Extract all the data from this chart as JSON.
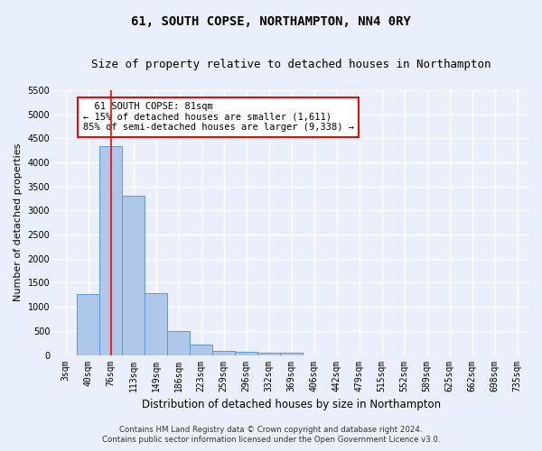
{
  "title": "61, SOUTH COPSE, NORTHAMPTON, NN4 0RY",
  "subtitle": "Size of property relative to detached houses in Northampton",
  "xlabel": "Distribution of detached houses by size in Northampton",
  "ylabel": "Number of detached properties",
  "footer_line1": "Contains HM Land Registry data © Crown copyright and database right 2024.",
  "footer_line2": "Contains public sector information licensed under the Open Government Licence v3.0.",
  "categories": [
    "3sqm",
    "40sqm",
    "76sqm",
    "113sqm",
    "149sqm",
    "186sqm",
    "223sqm",
    "259sqm",
    "296sqm",
    "332sqm",
    "369sqm",
    "406sqm",
    "442sqm",
    "479sqm",
    "515sqm",
    "552sqm",
    "589sqm",
    "625sqm",
    "662sqm",
    "698sqm",
    "735sqm"
  ],
  "values": [
    0,
    1270,
    4330,
    3300,
    1280,
    490,
    215,
    90,
    70,
    55,
    55,
    0,
    0,
    0,
    0,
    0,
    0,
    0,
    0,
    0,
    0
  ],
  "bar_color": "#aec6e8",
  "bar_edge_color": "#5b9bd5",
  "ylim": [
    0,
    5500
  ],
  "yticks": [
    0,
    500,
    1000,
    1500,
    2000,
    2500,
    3000,
    3500,
    4000,
    4500,
    5000,
    5500
  ],
  "annotation_text": "  61 SOUTH COPSE: 81sqm\n← 15% of detached houses are smaller (1,611)\n85% of semi-detached houses are larger (9,338) →",
  "vline_x_index": 2,
  "background_color": "#eaf0fb",
  "plot_background": "#eaf0fb",
  "grid_color": "#ffffff",
  "title_fontsize": 10,
  "subtitle_fontsize": 9,
  "tick_fontsize": 7,
  "ylabel_fontsize": 8,
  "xlabel_fontsize": 8.5
}
